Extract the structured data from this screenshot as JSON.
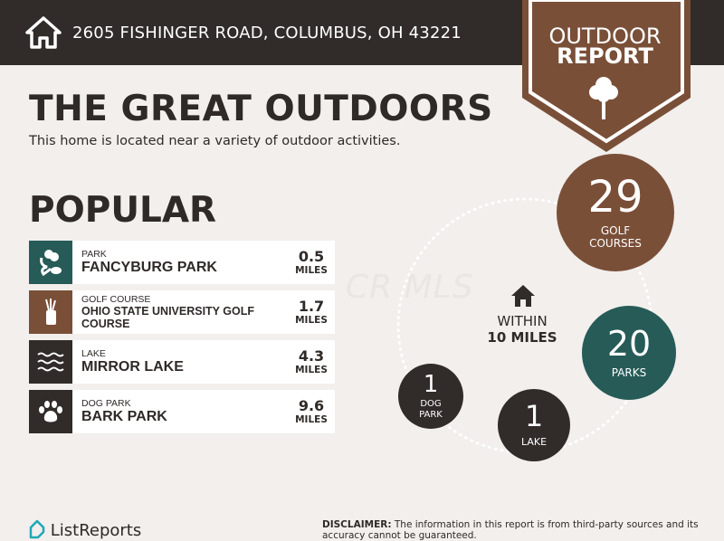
{
  "header": {
    "address": "2605 FISHINGER ROAD, COLUMBUS, OH 43221",
    "icon": "home-icon"
  },
  "badge": {
    "line1": "OUTDOOR",
    "line2": "REPORT",
    "icon": "tree-icon",
    "color": "#7a4f38"
  },
  "title": "THE GREAT OUTDOORS",
  "subtitle": "This home is located near a variety of outdoor activities.",
  "popular": {
    "heading": "POPULAR",
    "items": [
      {
        "category": "PARK",
        "name": "FANCYBURG PARK",
        "distance": "0.5",
        "unit": "MILES",
        "icon": "park-icon",
        "color": "#265b57"
      },
      {
        "category": "GOLF COURSE",
        "name": "OHIO STATE UNIVERSITY GOLF COURSE",
        "distance": "1.7",
        "unit": "MILES",
        "icon": "golf-bag-icon",
        "color": "#7a4f38"
      },
      {
        "category": "LAKE",
        "name": "MIRROR LAKE",
        "distance": "4.3",
        "unit": "MILES",
        "icon": "waves-icon",
        "color": "#312b29"
      },
      {
        "category": "DOG PARK",
        "name": "BARK PARK",
        "distance": "9.6",
        "unit": "MILES",
        "icon": "paw-icon",
        "color": "#312b29"
      }
    ]
  },
  "summary": {
    "within_line1": "WITHIN",
    "within_line2": "10 MILES",
    "counts": [
      {
        "count": "29",
        "label1": "GOLF",
        "label2": "COURSES"
      },
      {
        "count": "20",
        "label1": "PARKS"
      },
      {
        "count": "1",
        "label1": "LAKE"
      },
      {
        "count": "1",
        "label1": "DOG",
        "label2": "PARK"
      }
    ]
  },
  "watermark": "CR MLS",
  "footer": {
    "logo": "ListReports",
    "disclaimer_bold": "DISCLAIMER:",
    "disclaimer": " The information in this report is from third-party sources and its accuracy cannot be guaranteed."
  }
}
